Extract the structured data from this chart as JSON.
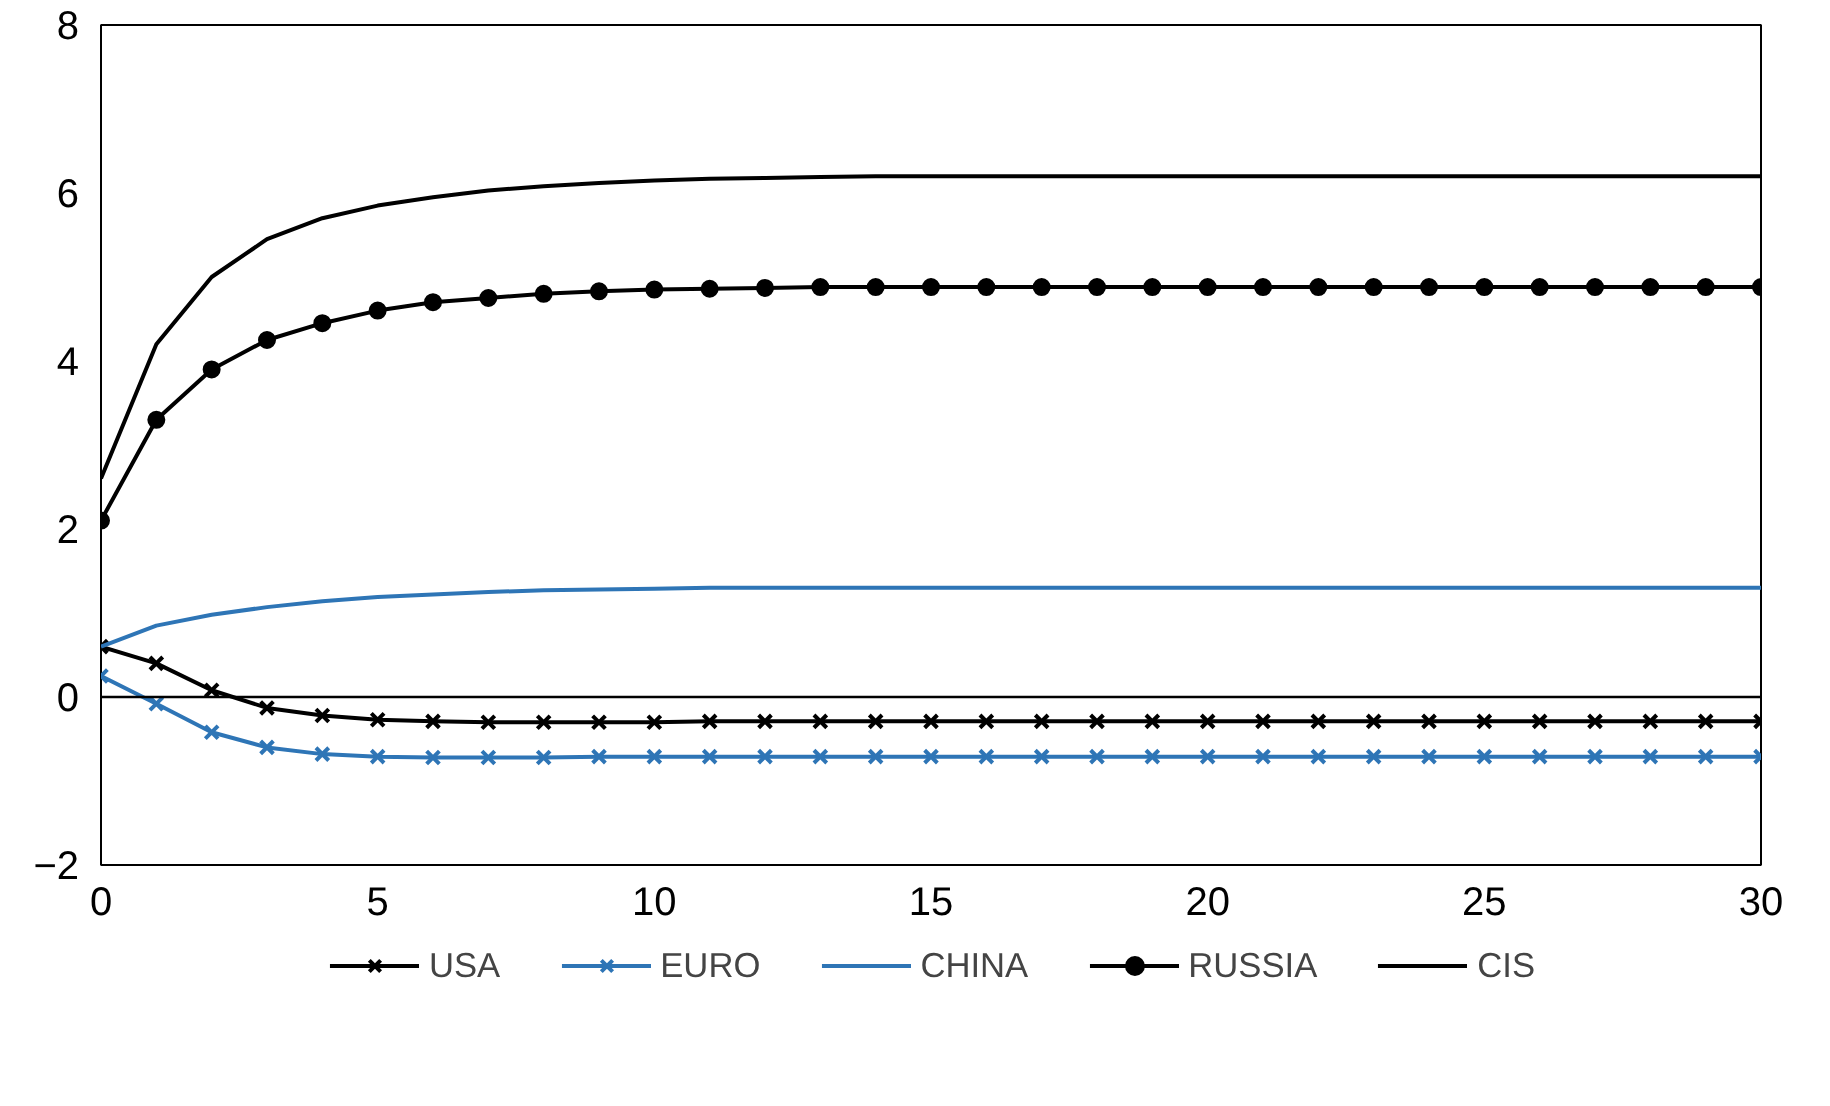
{
  "chart_data": {
    "type": "line",
    "x": [
      0,
      1,
      2,
      3,
      4,
      5,
      6,
      7,
      8,
      9,
      10,
      11,
      12,
      13,
      14,
      15,
      16,
      17,
      18,
      19,
      20,
      21,
      22,
      23,
      24,
      25,
      26,
      27,
      28,
      29,
      30
    ],
    "xlim": [
      0,
      30
    ],
    "xticks": [
      0,
      5,
      10,
      15,
      20,
      25,
      30
    ],
    "ylim": [
      -2,
      8
    ],
    "yticks": [
      -2,
      0,
      2,
      4,
      6,
      8
    ],
    "grid": false,
    "legend": "bottom",
    "ref_lines": [
      {
        "axis": "y",
        "value": 0,
        "color": "#000000"
      }
    ],
    "series": [
      {
        "name": "USA",
        "color": "#000000",
        "marker": "cross",
        "values": [
          0.6,
          0.4,
          0.08,
          -0.13,
          -0.22,
          -0.27,
          -0.29,
          -0.3,
          -0.3,
          -0.3,
          -0.3,
          -0.29,
          -0.29,
          -0.29,
          -0.29,
          -0.29,
          -0.29,
          -0.29,
          -0.29,
          -0.29,
          -0.29,
          -0.29,
          -0.29,
          -0.29,
          -0.29,
          -0.29,
          -0.29,
          -0.29,
          -0.29,
          -0.29,
          -0.29
        ]
      },
      {
        "name": "EURO",
        "color": "#2e75b6",
        "marker": "cross",
        "values": [
          0.25,
          -0.08,
          -0.42,
          -0.6,
          -0.68,
          -0.71,
          -0.72,
          -0.72,
          -0.72,
          -0.71,
          -0.71,
          -0.71,
          -0.71,
          -0.71,
          -0.71,
          -0.71,
          -0.71,
          -0.71,
          -0.71,
          -0.71,
          -0.71,
          -0.71,
          -0.71,
          -0.71,
          -0.71,
          -0.71,
          -0.71,
          -0.71,
          -0.71,
          -0.71,
          -0.71
        ]
      },
      {
        "name": "CHINA",
        "color": "#2e75b6",
        "marker": "none",
        "values": [
          0.6,
          0.85,
          0.98,
          1.07,
          1.14,
          1.19,
          1.22,
          1.25,
          1.27,
          1.28,
          1.29,
          1.3,
          1.3,
          1.3,
          1.3,
          1.3,
          1.3,
          1.3,
          1.3,
          1.3,
          1.3,
          1.3,
          1.3,
          1.3,
          1.3,
          1.3,
          1.3,
          1.3,
          1.3,
          1.3,
          1.3
        ]
      },
      {
        "name": "RUSSIA",
        "color": "#000000",
        "marker": "circle",
        "values": [
          2.1,
          3.3,
          3.9,
          4.25,
          4.45,
          4.6,
          4.7,
          4.75,
          4.8,
          4.83,
          4.85,
          4.86,
          4.87,
          4.88,
          4.88,
          4.88,
          4.88,
          4.88,
          4.88,
          4.88,
          4.88,
          4.88,
          4.88,
          4.88,
          4.88,
          4.88,
          4.88,
          4.88,
          4.88,
          4.88,
          4.88
        ]
      },
      {
        "name": "CIS",
        "color": "#000000",
        "marker": "none",
        "values": [
          2.6,
          4.2,
          5.0,
          5.45,
          5.7,
          5.85,
          5.95,
          6.03,
          6.08,
          6.12,
          6.15,
          6.17,
          6.18,
          6.19,
          6.2,
          6.2,
          6.2,
          6.2,
          6.2,
          6.2,
          6.2,
          6.2,
          6.2,
          6.2,
          6.2,
          6.2,
          6.2,
          6.2,
          6.2,
          6.2,
          6.2
        ]
      }
    ]
  }
}
